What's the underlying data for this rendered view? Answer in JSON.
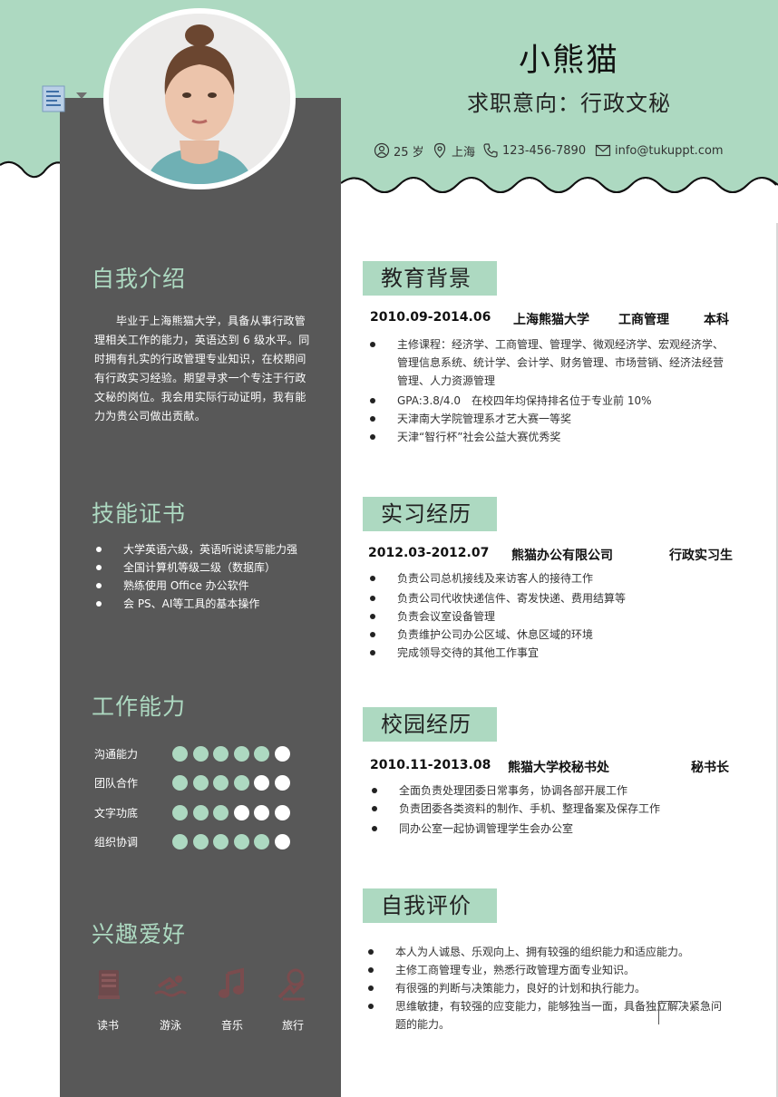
{
  "colors": {
    "accent": "#add9c1",
    "sidebar": "#585858",
    "text": "#222222"
  },
  "header": {
    "name": "小熊猫",
    "intent": "求职意向：行政文秘",
    "contact": {
      "age": "25 岁",
      "location": "上海",
      "phone": "123-456-7890",
      "email": "info@tukuppt.com"
    }
  },
  "sidebar": {
    "intro": {
      "heading": "自我介绍",
      "text": "毕业于上海熊猫大学，具备从事行政管理相关工作的能力，英语达到 6 级水平。同时拥有扎实的行政管理专业知识，在校期间有行政实习经验。期望寻求一个专注于行政文秘的岗位。我会用实际行动证明，我有能力为贵公司做出贡献。"
    },
    "certs": {
      "heading": "技能证书",
      "items": [
        "大学英语六级，英语听说读写能力强",
        "全国计算机等级二级（数据库）",
        "熟练使用 Office 办公软件",
        "会 PS、AI等工具的基本操作"
      ]
    },
    "abilities": {
      "heading": "工作能力",
      "items": [
        {
          "label": "沟通能力",
          "level": 5,
          "max": 6
        },
        {
          "label": "团队合作",
          "level": 4,
          "max": 6
        },
        {
          "label": "文字功底",
          "level": 3,
          "max": 6
        },
        {
          "label": "组织协调",
          "level": 5,
          "max": 6
        }
      ]
    },
    "hobbies": {
      "heading": "兴趣爱好",
      "items": [
        {
          "label": "读书",
          "icon": "book-icon"
        },
        {
          "label": "游泳",
          "icon": "swimming-icon"
        },
        {
          "label": "音乐",
          "icon": "music-icon"
        },
        {
          "label": "旅行",
          "icon": "travel-icon"
        }
      ]
    }
  },
  "education": {
    "heading": "教育背景",
    "period": "2010.09-2014.06",
    "school": "上海熊猫大学",
    "major": "工商管理",
    "degree": "本科",
    "items": [
      "主修课程：经济学、工商管理、管理学、微观经济学、宏观经济学、管理信息系统、统计学、会计学、财务管理、市场营销、经济法经营管理、人力资源管理",
      "GPA:3.8/4.0　在校四年均保持排名位于专业前 10%",
      "天津南大学院管理系才艺大赛一等奖",
      "天津“智行杯”社会公益大赛优秀奖"
    ]
  },
  "internship": {
    "heading": "实习经历",
    "period": "2012.03-2012.07",
    "company": "熊猫办公有限公司",
    "role": "行政实习生",
    "items": [
      "负责公司总机接线及来访客人的接待工作",
      "负责公司代收快递信件、寄发快递、费用结算等",
      "负责会议室设备管理",
      "负责维护公司办公区域、休息区域的环境",
      "完成领导交待的其他工作事宜"
    ]
  },
  "campus": {
    "heading": "校园经历",
    "period": "2010.11-2013.08",
    "org": "熊猫大学校秘书处",
    "role": "秘书长",
    "items": [
      "全面负责处理团委日常事务，协调各部开展工作",
      "负责团委各类资料的制作、手机、整理备案及保存工作",
      "同办公室一起协调管理学生会办公室"
    ]
  },
  "evaluation": {
    "heading": "自我评价",
    "items": [
      "本人为人诚恳、乐观向上、拥有较强的组织能力和适应能力。",
      "主修工商管理专业，熟悉行政管理方面专业知识。",
      "有很强的判断与决策能力，良好的计划和执行能力。",
      "思维敏捷，有较强的应变能力，能够独当一面，具备独立解决紧急问题的能力。"
    ]
  }
}
